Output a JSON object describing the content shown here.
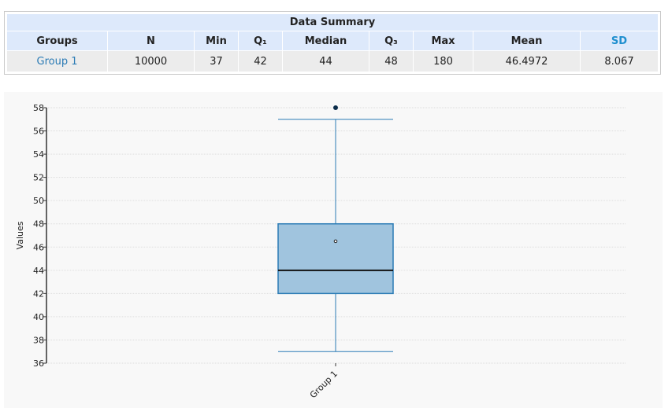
{
  "summary": {
    "title": "Data Summary",
    "headers": {
      "groups": "Groups",
      "n": "N",
      "min": "Min",
      "q1": "Q₁",
      "median": "Median",
      "q3": "Q₃",
      "max": "Max",
      "mean": "Mean",
      "sd": "SD"
    },
    "row": {
      "group": "Group 1",
      "n": "10000",
      "min": "37",
      "q1": "42",
      "median": "44",
      "q3": "48",
      "max": "180",
      "mean": "46.4972",
      "sd": "8.067"
    }
  },
  "colors": {
    "box_fill": "#a0c4de",
    "box_stroke": "#2b7bb5",
    "median": "#111111",
    "header_bg": "#dde9fb",
    "sd_header": "#1f8fcf",
    "group_link": "#2b7bb5"
  },
  "chart_data": {
    "type": "boxplot",
    "ylabel": "Values",
    "ylim": [
      36,
      58
    ],
    "yticks": [
      36,
      38,
      40,
      42,
      44,
      46,
      48,
      50,
      52,
      54,
      56,
      58
    ],
    "grid": true,
    "categories": [
      "Group 1"
    ],
    "boxes": [
      {
        "category": "Group 1",
        "whisker_low": 37,
        "q1": 42,
        "median": 44,
        "q3": 48,
        "whisker_high": 57,
        "mean": 46.5,
        "outliers": [
          58
        ]
      }
    ]
  }
}
